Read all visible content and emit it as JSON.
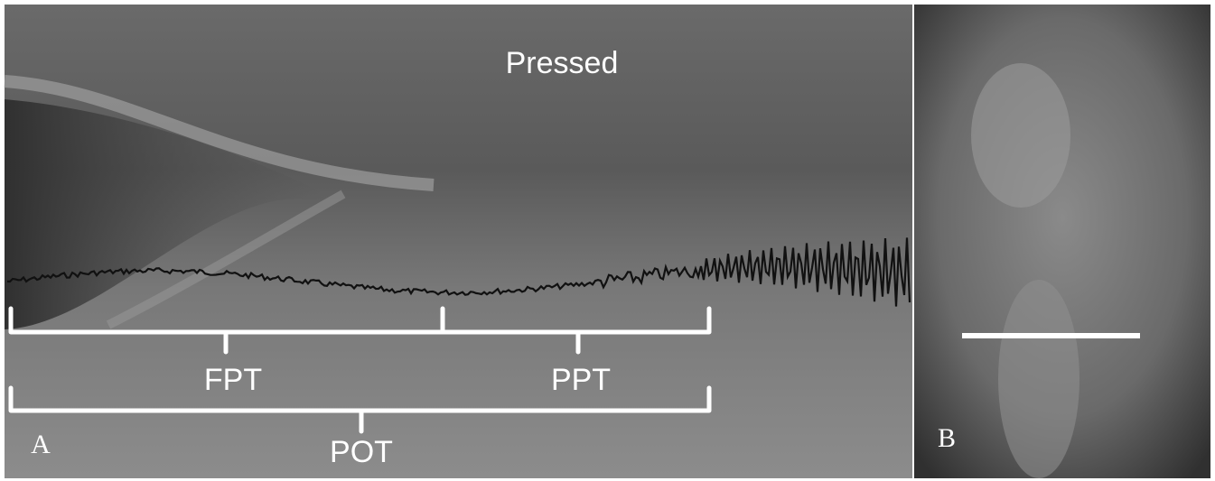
{
  "panel_a": {
    "label": "A",
    "title": "Pressed",
    "brackets": [
      "FPT",
      "PPT",
      "POT"
    ]
  },
  "panel_b": {
    "label": "B"
  }
}
